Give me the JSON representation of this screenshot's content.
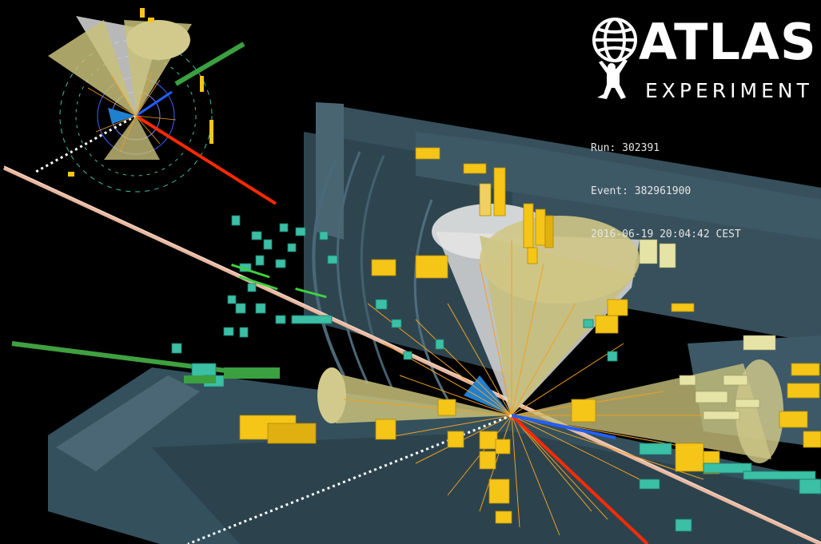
{
  "logo": {
    "word": "ATLAS",
    "subtitle": "EXPERIMENT",
    "icon": "atlas-globe-figure-icon",
    "color": "#ffffff"
  },
  "event_info": {
    "run": "Run: 302391",
    "event": "Event: 382961900",
    "timestamp": "2016-06-19 20:04:42 CEST"
  },
  "colors": {
    "background": "#000000",
    "detector": "#3c5561",
    "jet_cone": "#c8c07a",
    "photon_cone": "#d8d8d8",
    "calorimeter_tower": "#f5c518",
    "track": "#f0a020",
    "muon_track": "#ff2a00",
    "electron_track": "#2060ff",
    "missing_energy": "#ffffff",
    "muon_chamber_hit": "#3bbfa5",
    "tracker_hit": "#40d040",
    "beam_pipe": "#e8b8a0"
  }
}
